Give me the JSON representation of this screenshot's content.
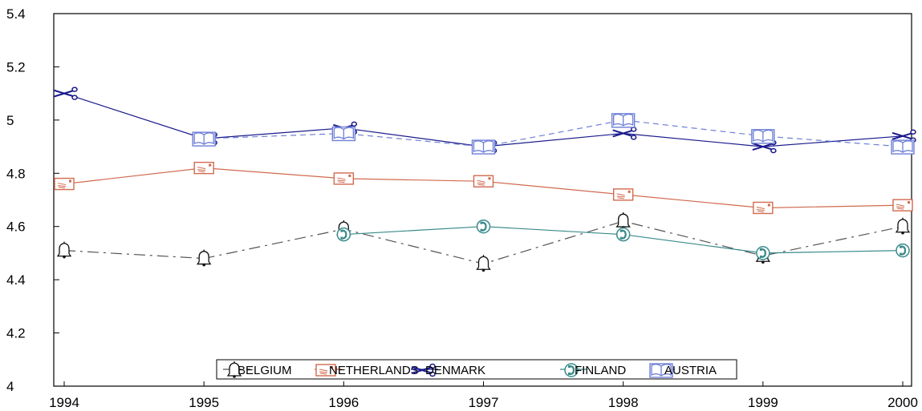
{
  "chart_data": {
    "type": "line",
    "title": "",
    "xlabel": "",
    "ylabel": "",
    "x": [
      1994,
      1995,
      1996,
      1997,
      1998,
      1999,
      2000
    ],
    "xticks": [
      "1994",
      "1995",
      "1996",
      "1997",
      "1998",
      "1999",
      "2000"
    ],
    "yticks": [
      "4",
      "4.2",
      "4.4",
      "4.6",
      "4.8",
      "5",
      "5.2",
      "5.4"
    ],
    "ylim": [
      4,
      5.4
    ],
    "grid": false,
    "legend_position": "bottom-center",
    "series": [
      {
        "name": "BELGIUM",
        "values": [
          4.51,
          4.48,
          4.59,
          4.46,
          4.62,
          4.49,
          4.6
        ],
        "color": "#555555",
        "dash": "dashdot",
        "marker": "bell-icon"
      },
      {
        "name": "NETHERLANDS",
        "values": [
          4.76,
          4.82,
          4.78,
          4.77,
          4.72,
          4.67,
          4.68
        ],
        "color": "#d06a4f",
        "dash": "solid",
        "marker": "envelope-icon"
      },
      {
        "name": "DENMARK",
        "values": [
          5.1,
          4.93,
          4.97,
          4.9,
          4.95,
          4.9,
          4.94
        ],
        "color": "#1a1a8c",
        "dash": "solid",
        "marker": "scissors-icon"
      },
      {
        "name": "FINLAND",
        "values": [
          null,
          null,
          4.57,
          4.6,
          4.57,
          4.5,
          4.51
        ],
        "color": "#3a8a8a",
        "dash": "solid",
        "marker": "phone-icon"
      },
      {
        "name": "AUSTRIA",
        "values": [
          null,
          4.93,
          4.95,
          4.9,
          5.0,
          4.94,
          4.9
        ],
        "color": "#6e7fd6",
        "dash": "dashed",
        "marker": "book-icon"
      }
    ]
  }
}
